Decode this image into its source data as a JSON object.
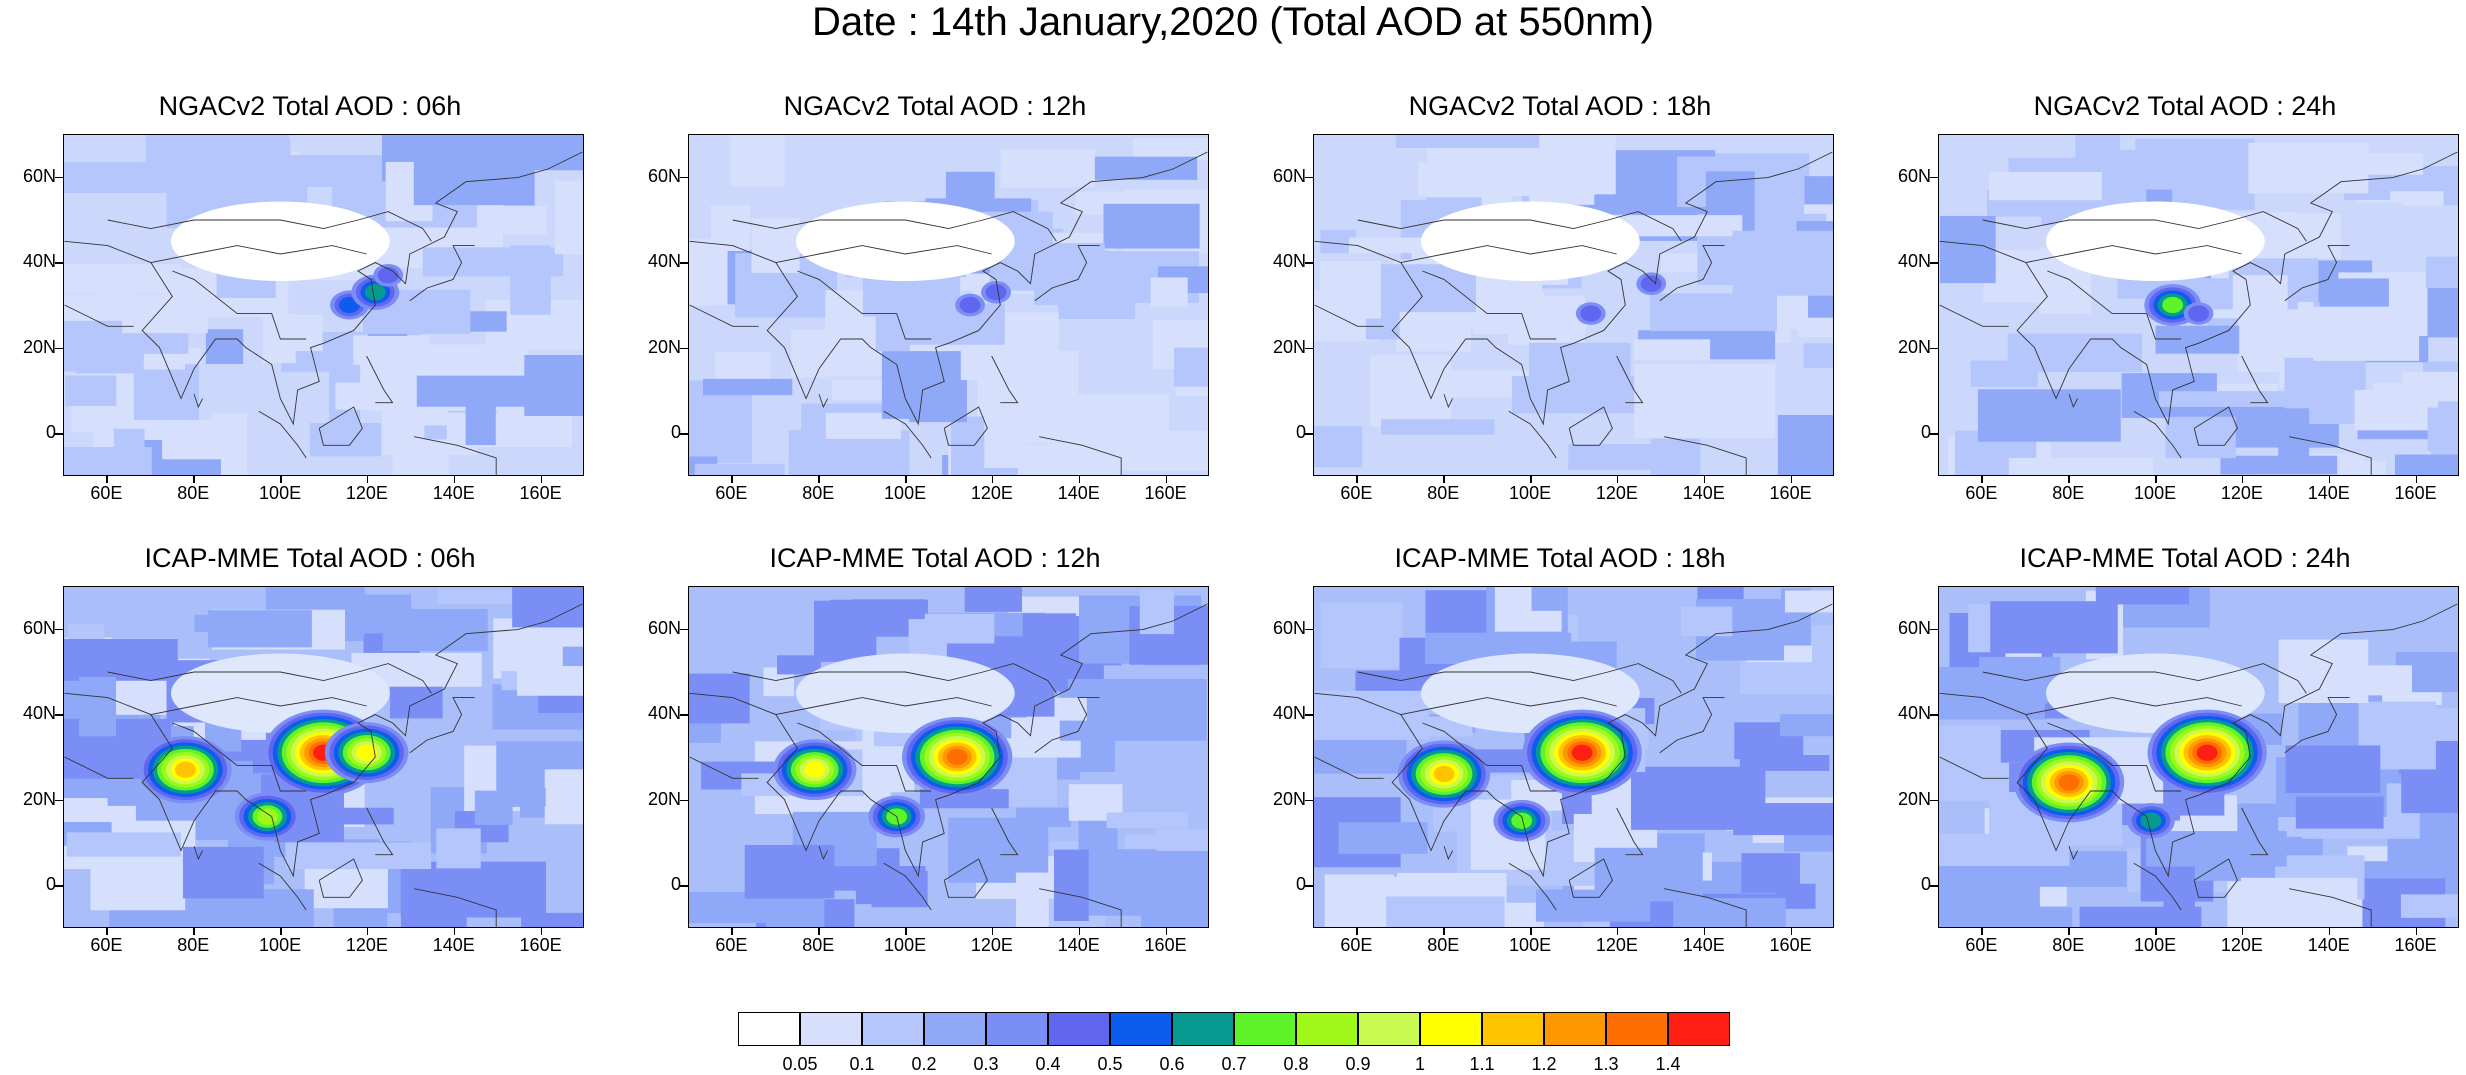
{
  "title": "Date : 14th January,2020 (Total AOD at 550nm)",
  "lat_labels": [
    "60N",
    "40N",
    "20N",
    "0"
  ],
  "lon_labels": [
    "60E",
    "80E",
    "100E",
    "120E",
    "140E",
    "160E"
  ],
  "panels": [
    {
      "title": "NGACv2 Total AOD : 06h",
      "model": "NGACv2",
      "hour": "06h",
      "hotspots": [
        {
          "lon": 116,
          "lat": 30,
          "value": 0.5
        },
        {
          "lon": 122,
          "lat": 33,
          "value": 0.6
        },
        {
          "lon": 125,
          "lat": 37,
          "value": 0.45
        }
      ]
    },
    {
      "title": "NGACv2 Total AOD : 12h",
      "model": "NGACv2",
      "hour": "12h",
      "hotspots": [
        {
          "lon": 115,
          "lat": 30,
          "value": 0.45
        },
        {
          "lon": 121,
          "lat": 33,
          "value": 0.45
        }
      ]
    },
    {
      "title": "NGACv2 Total AOD : 18h",
      "model": "NGACv2",
      "hour": "18h",
      "hotspots": [
        {
          "lon": 114,
          "lat": 28,
          "value": 0.45
        },
        {
          "lon": 128,
          "lat": 35,
          "value": 0.4
        }
      ]
    },
    {
      "title": "NGACv2 Total AOD : 24h",
      "model": "NGACv2",
      "hour": "24h",
      "hotspots": [
        {
          "lon": 104,
          "lat": 30,
          "value": 0.7
        },
        {
          "lon": 110,
          "lat": 28,
          "value": 0.45
        }
      ]
    },
    {
      "title": "ICAP-MME Total AOD : 06h",
      "model": "ICAP-MME",
      "hour": "06h",
      "hotspots": [
        {
          "lon": 78,
          "lat": 27,
          "value": 1.1
        },
        {
          "lon": 110,
          "lat": 31,
          "value": 1.4
        },
        {
          "lon": 120,
          "lat": 31,
          "value": 1.0
        },
        {
          "lon": 97,
          "lat": 16,
          "value": 0.8
        }
      ]
    },
    {
      "title": "ICAP-MME Total AOD : 12h",
      "model": "ICAP-MME",
      "hour": "12h",
      "hotspots": [
        {
          "lon": 79,
          "lat": 27,
          "value": 1.0
        },
        {
          "lon": 112,
          "lat": 30,
          "value": 1.3
        },
        {
          "lon": 98,
          "lat": 16,
          "value": 0.7
        }
      ]
    },
    {
      "title": "ICAP-MME Total AOD : 18h",
      "model": "ICAP-MME",
      "hour": "18h",
      "hotspots": [
        {
          "lon": 80,
          "lat": 26,
          "value": 1.1
        },
        {
          "lon": 112,
          "lat": 31,
          "value": 1.4
        },
        {
          "lon": 98,
          "lat": 15,
          "value": 0.7
        }
      ]
    },
    {
      "title": "ICAP-MME Total AOD : 24h",
      "model": "ICAP-MME",
      "hour": "24h",
      "hotspots": [
        {
          "lon": 80,
          "lat": 24,
          "value": 1.3
        },
        {
          "lon": 112,
          "lat": 31,
          "value": 1.4
        },
        {
          "lon": 99,
          "lat": 15,
          "value": 0.6
        }
      ]
    }
  ],
  "map_extent": {
    "lon_min": 50,
    "lon_max": 170,
    "lat_min": -10,
    "lat_max": 70
  },
  "colorbar": {
    "labels": [
      "0.05",
      "0.1",
      "0.2",
      "0.3",
      "0.4",
      "0.5",
      "0.6",
      "0.7",
      "0.8",
      "0.9",
      "1",
      "1.1",
      "1.2",
      "1.3",
      "1.4"
    ],
    "levels": [
      0.05,
      0.1,
      0.2,
      0.3,
      0.4,
      0.5,
      0.6,
      0.7,
      0.8,
      0.9,
      1.0,
      1.1,
      1.2,
      1.3,
      1.4
    ],
    "colors": [
      "#ffffff",
      "#d6e0fd",
      "#b4c6fb",
      "#8fa8f7",
      "#7b8ef5",
      "#6166f0",
      "#0d5cf0",
      "#079a90",
      "#5df52a",
      "#a0f81a",
      "#c8fa50",
      "#ffff00",
      "#ffc400",
      "#ff9800",
      "#ff6e00",
      "#ff1f12"
    ]
  }
}
